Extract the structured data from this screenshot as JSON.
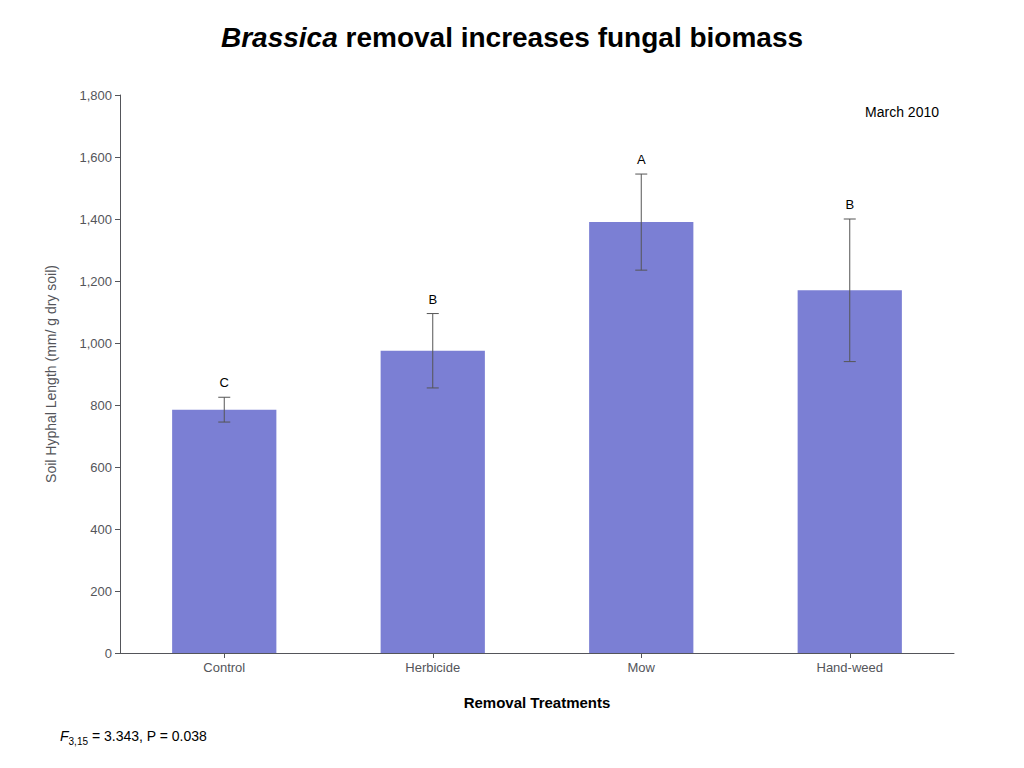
{
  "chart_data": {
    "type": "bar",
    "title": "Brassica removal increases fungal biomass",
    "categories": [
      "Control",
      "Herbicide",
      "Mow",
      "Hand-weed"
    ],
    "values": [
      785,
      975,
      1390,
      1170
    ],
    "errors": [
      40,
      120,
      155,
      230
    ],
    "color": "#7B7FD4",
    "xlabel": "Removal Treatments",
    "ylabel": "Soil Hyphal Length (mm/ g dry soil)",
    "ylim": [
      0,
      1800
    ],
    "yticks": [
      0,
      200,
      400,
      600,
      800,
      1000,
      1200,
      1400,
      1600,
      1800
    ],
    "grid": false,
    "annotations": [
      "C",
      "B",
      "A",
      "B"
    ],
    "date_label": "March 2010",
    "stat_text": {
      "symbol": "F",
      "subscript": "3,15",
      "rest": " = 3.343, P = 0.038"
    }
  }
}
